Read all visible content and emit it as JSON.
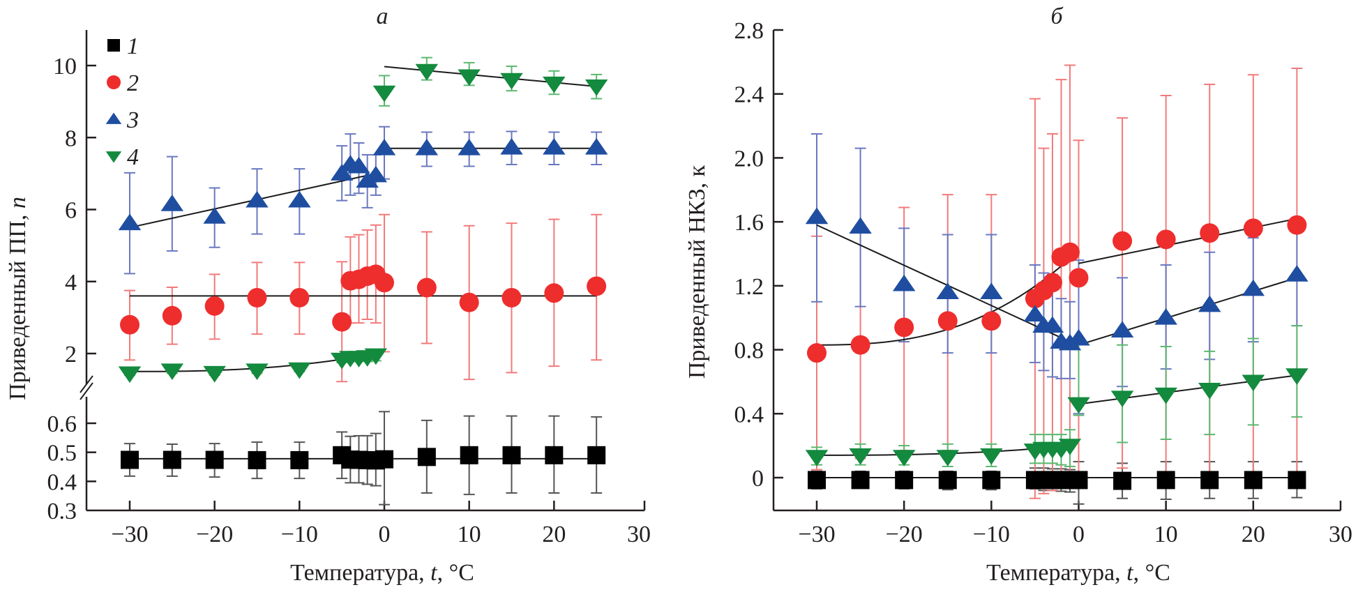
{
  "chart_data": [
    {
      "type": "scatter",
      "panel": "a",
      "title": "а",
      "xlabel": "Температура, t, °C",
      "ylabel": "Приведенный ПП, n",
      "xlim": [
        -35,
        30
      ],
      "x_ticks": [
        -30,
        -20,
        -10,
        0,
        10,
        20,
        30
      ],
      "x_tick_labels": [
        "−30",
        "−20",
        "−10",
        "0",
        "10",
        "20",
        "30"
      ],
      "y_axis_broken": true,
      "y_upper_ticks": [
        2,
        4,
        6,
        8,
        10
      ],
      "y_upper_tick_labels": [
        "2",
        "4",
        "6",
        "8",
        "10"
      ],
      "y_upper_range": [
        1.2,
        10.8
      ],
      "y_lower_ticks": [
        0.3,
        0.4,
        0.5,
        0.6
      ],
      "y_lower_tick_labels": [
        "0.3",
        "0.4",
        "0.5",
        "0.6"
      ],
      "y_lower_range": [
        0.3,
        0.68
      ],
      "legend": {
        "placement": "top-left",
        "entries": [
          "1",
          "2",
          "3",
          "4"
        ]
      },
      "x": [
        -30,
        -25,
        -20,
        -15,
        -10,
        -5,
        -4,
        -3,
        -2,
        -1,
        0,
        5,
        10,
        15,
        20,
        25
      ],
      "series": [
        {
          "name": "1",
          "marker": "square",
          "color": "#000000",
          "axis": "lower",
          "values": [
            0.474,
            0.474,
            0.474,
            0.473,
            0.473,
            0.49,
            0.475,
            0.474,
            0.473,
            0.472,
            0.476,
            0.484,
            0.49,
            0.49,
            0.49,
            0.49
          ],
          "err_low": [
            0.418,
            0.418,
            0.415,
            0.41,
            0.41,
            0.41,
            0.395,
            0.395,
            0.39,
            0.385,
            0.32,
            0.36,
            0.355,
            0.36,
            0.36,
            0.36
          ],
          "err_high": [
            0.53,
            0.528,
            0.53,
            0.535,
            0.535,
            0.57,
            0.555,
            0.557,
            0.557,
            0.565,
            0.64,
            0.61,
            0.625,
            0.625,
            0.625,
            0.622
          ],
          "fit": [
            {
              "x": [
                -30,
                25
              ],
              "y": [
                0.478,
                0.478
              ]
            }
          ]
        },
        {
          "name": "2",
          "marker": "circle",
          "color": "#ee2d2d",
          "axis": "upper",
          "values": [
            2.8,
            3.05,
            3.32,
            3.55,
            3.55,
            2.88,
            4.02,
            4.06,
            4.15,
            4.2,
            3.97,
            3.83,
            3.42,
            3.55,
            3.68,
            3.87
          ],
          "err_low": [
            1.82,
            2.26,
            2.4,
            2.54,
            2.54,
            1.22,
            2.85,
            2.85,
            2.95,
            2.85,
            2.05,
            2.28,
            1.28,
            1.47,
            1.65,
            1.82
          ],
          "err_high": [
            3.75,
            3.84,
            4.2,
            4.53,
            4.53,
            4.55,
            5.24,
            5.3,
            5.43,
            5.57,
            5.86,
            5.38,
            5.55,
            5.62,
            5.73,
            5.86
          ],
          "fit": [
            {
              "x": [
                -30,
                25
              ],
              "y": [
                3.6,
                3.6
              ]
            }
          ]
        },
        {
          "name": "3",
          "marker": "triangle-up",
          "color": "#1f4ea1",
          "axis": "upper",
          "values": [
            5.62,
            6.15,
            5.8,
            6.25,
            6.25,
            7.0,
            7.25,
            7.2,
            6.8,
            6.95,
            7.7,
            7.7,
            7.7,
            7.72,
            7.72,
            7.72
          ],
          "err_low": [
            4.22,
            4.85,
            4.95,
            5.32,
            5.32,
            6.25,
            6.4,
            6.45,
            6.05,
            6.4,
            6.85,
            7.2,
            7.2,
            7.25,
            7.25,
            7.25
          ],
          "err_high": [
            7.02,
            7.47,
            6.6,
            7.13,
            7.13,
            7.77,
            8.1,
            7.85,
            7.52,
            7.52,
            8.3,
            8.15,
            8.15,
            8.17,
            8.15,
            8.15
          ],
          "fit": [
            {
              "x": [
                -30,
                -1
              ],
              "y": [
                5.5,
                7.0
              ]
            },
            {
              "x": [
                0,
                25
              ],
              "y": [
                7.7,
                7.7
              ]
            }
          ]
        },
        {
          "name": "4",
          "marker": "triangle-down",
          "color": "#138a3e",
          "axis": "upper",
          "values": [
            1.45,
            1.53,
            1.46,
            1.53,
            1.56,
            1.83,
            1.88,
            1.88,
            1.9,
            1.95,
            9.25,
            9.85,
            9.7,
            9.6,
            9.5,
            9.42
          ],
          "err_low": [
            1.4,
            1.45,
            1.4,
            1.45,
            1.5,
            1.75,
            1.78,
            1.78,
            1.78,
            1.8,
            8.88,
            9.6,
            9.45,
            9.3,
            9.2,
            9.08
          ],
          "err_high": [
            1.55,
            1.6,
            1.55,
            1.6,
            1.62,
            1.95,
            1.98,
            1.98,
            2.0,
            2.05,
            9.72,
            10.22,
            10.08,
            9.98,
            9.85,
            9.75
          ],
          "fit": [
            {
              "x": [
                -30,
                -1
              ],
              "y": [
                1.5,
                2.0
              ],
              "curve": true
            },
            {
              "x": [
                0,
                25
              ],
              "y": [
                9.97,
                9.42
              ]
            }
          ]
        }
      ]
    },
    {
      "type": "scatter",
      "panel": "b",
      "title": "б",
      "xlabel": "Температура, t, °C",
      "ylabel": "Приведенный НКЗ, к",
      "xlim": [
        -35,
        30
      ],
      "ylim": [
        -0.2,
        2.8
      ],
      "x_ticks": [
        -30,
        -20,
        -10,
        0,
        10,
        20,
        30
      ],
      "x_tick_labels": [
        "−30",
        "−20",
        "−10",
        "0",
        "10",
        "20",
        "30"
      ],
      "y_ticks": [
        0,
        0.4,
        0.8,
        1.2,
        1.6,
        2.0,
        2.4,
        2.8
      ],
      "y_tick_labels": [
        "0",
        "0.4",
        "0.8",
        "1.2",
        "1.6",
        "2.0",
        "2.4",
        "2.8"
      ],
      "x": [
        -30,
        -25,
        -20,
        -15,
        -10,
        -5,
        -4,
        -3,
        -2,
        -1,
        0,
        5,
        10,
        15,
        20,
        25
      ],
      "series": [
        {
          "name": "1",
          "marker": "square",
          "color": "#000000",
          "values": [
            -0.015,
            -0.015,
            -0.015,
            -0.015,
            -0.015,
            -0.015,
            -0.015,
            -0.015,
            -0.015,
            -0.015,
            -0.015,
            -0.02,
            -0.015,
            -0.015,
            -0.015,
            -0.015
          ],
          "err_low": [
            -0.07,
            -0.065,
            -0.07,
            -0.075,
            -0.075,
            -0.07,
            -0.08,
            -0.08,
            -0.085,
            -0.09,
            -0.165,
            -0.13,
            -0.135,
            -0.13,
            -0.13,
            -0.125
          ],
          "err_high": [
            0.04,
            0.04,
            0.04,
            0.04,
            0.04,
            0.06,
            0.06,
            0.055,
            0.055,
            0.05,
            0.1,
            0.09,
            0.1,
            0.1,
            0.1,
            0.1
          ],
          "fit": [
            {
              "x": [
                -30,
                25
              ],
              "y": [
                0,
                0
              ]
            }
          ]
        },
        {
          "name": "2",
          "marker": "circle",
          "color": "#ee2d2d",
          "values": [
            0.78,
            0.83,
            0.94,
            0.98,
            0.98,
            1.12,
            1.17,
            1.22,
            1.38,
            1.41,
            1.25,
            1.48,
            1.49,
            1.53,
            1.56,
            1.58
          ],
          "err_low": [
            0.05,
            0.12,
            0.17,
            0.17,
            0.17,
            -0.13,
            -0.1,
            -0.08,
            -0.05,
            -0.02,
            0.0,
            0.06,
            0.0,
            0.0,
            0.0,
            0.0
          ],
          "err_high": [
            1.51,
            1.54,
            1.69,
            1.77,
            1.77,
            2.37,
            2.06,
            2.15,
            2.49,
            2.58,
            2.11,
            2.25,
            2.39,
            2.46,
            2.52,
            2.56
          ],
          "fit": [
            {
              "x": [
                -30,
                -1
              ],
              "y": [
                0.83,
                1.37
              ],
              "curve": true
            },
            {
              "x": [
                0,
                25
              ],
              "y": [
                1.34,
                1.62
              ]
            }
          ]
        },
        {
          "name": "3",
          "marker": "triangle-up",
          "color": "#1f4ea1",
          "values": [
            1.63,
            1.57,
            1.21,
            1.16,
            1.16,
            1.02,
            0.95,
            0.95,
            0.85,
            0.84,
            0.87,
            0.92,
            1.0,
            1.08,
            1.18,
            1.27
          ],
          "err_low": [
            1.1,
            1.07,
            0.85,
            0.78,
            0.78,
            0.72,
            0.67,
            0.63,
            0.62,
            0.62,
            0.4,
            0.57,
            0.68,
            0.74,
            0.85,
            0.95
          ],
          "err_high": [
            2.15,
            2.06,
            1.56,
            1.52,
            1.52,
            1.33,
            1.28,
            1.27,
            1.12,
            1.1,
            1.36,
            1.25,
            1.33,
            1.41,
            1.5,
            1.58
          ],
          "fit": [
            {
              "x": [
                -30,
                -1
              ],
              "y": [
                1.58,
                0.85
              ]
            },
            {
              "x": [
                0,
                25
              ],
              "y": [
                0.83,
                1.25
              ]
            }
          ]
        },
        {
          "name": "4",
          "marker": "triangle-down",
          "color": "#138a3e",
          "values": [
            0.13,
            0.14,
            0.13,
            0.13,
            0.14,
            0.17,
            0.18,
            0.18,
            0.18,
            0.2,
            0.46,
            0.5,
            0.52,
            0.55,
            0.6,
            0.64
          ],
          "err_low": [
            0.08,
            0.08,
            0.08,
            0.07,
            0.07,
            0.09,
            0.09,
            0.09,
            0.08,
            0.07,
            0.39,
            0.22,
            0.24,
            0.27,
            0.33,
            0.38
          ],
          "err_high": [
            0.19,
            0.21,
            0.2,
            0.21,
            0.21,
            0.27,
            0.27,
            0.27,
            0.27,
            0.3,
            0.86,
            0.83,
            0.82,
            0.79,
            0.87,
            0.95
          ],
          "fit": [
            {
              "x": [
                -30,
                -1
              ],
              "y": [
                0.14,
                0.2
              ],
              "curve": true
            },
            {
              "x": [
                0,
                25
              ],
              "y": [
                0.46,
                0.64
              ]
            }
          ]
        }
      ]
    }
  ]
}
